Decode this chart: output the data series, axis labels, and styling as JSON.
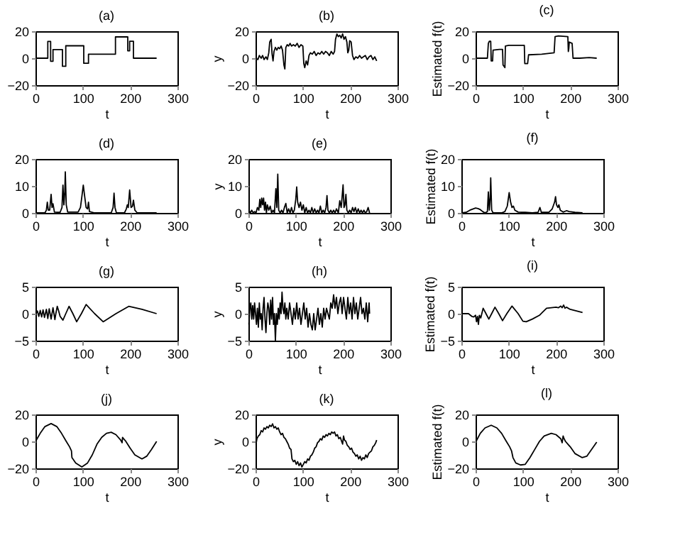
{
  "chart_data": [
    {
      "type": "line",
      "title": "(a)",
      "xlabel": "t",
      "color": "#000000",
      "xlim": [
        0,
        300
      ],
      "xticks": [
        0,
        100,
        200,
        300
      ],
      "ylim": [
        -20,
        20
      ],
      "yticks": [
        -20,
        0,
        20
      ],
      "x": [
        1,
        26,
        26,
        32,
        32,
        37,
        37,
        57,
        57,
        64,
        64,
        102,
        102,
        112,
        112,
        169,
        169,
        195,
        195,
        199,
        199,
        207,
        207,
        256
      ],
      "values": [
        0,
        0,
        12.4,
        12.4,
        -2.3,
        -2.3,
        6.4,
        6.4,
        -6,
        -6,
        9.2,
        9.2,
        -3.8,
        -3.8,
        3,
        3,
        15.8,
        15.8,
        5.5,
        5.5,
        12.6,
        12.6,
        0,
        0
      ]
    },
    {
      "type": "line",
      "title": "(b)",
      "xlabel": "t",
      "ylabel": "y",
      "color": "#000000",
      "xlim": [
        0,
        300
      ],
      "xticks": [
        0,
        100,
        200,
        300
      ],
      "ylim": [
        -20,
        20
      ],
      "yticks": [
        -20,
        0,
        20
      ],
      "x": [
        1,
        5,
        8,
        12,
        15,
        18,
        22,
        25,
        28,
        30,
        33,
        35,
        37,
        39,
        42,
        45,
        48,
        51,
        54,
        57,
        60,
        62,
        64,
        67,
        70,
        73,
        76,
        80,
        84,
        88,
        92,
        96,
        100,
        102,
        104,
        107,
        110,
        113,
        116,
        120,
        124,
        128,
        132,
        136,
        140,
        144,
        148,
        152,
        156,
        160,
        164,
        167,
        169,
        172,
        175,
        178,
        181,
        184,
        187,
        190,
        193,
        195,
        197,
        199,
        202,
        205,
        208,
        212,
        216,
        220,
        224,
        228,
        232,
        236,
        240,
        244,
        248,
        252,
        256
      ],
      "values": [
        0,
        -1,
        2,
        0,
        2,
        -1,
        1,
        -1,
        4,
        12,
        14,
        3,
        -2,
        5,
        8,
        6,
        8,
        7,
        9,
        6,
        -5,
        -8,
        8,
        10,
        9,
        11,
        9,
        10,
        9,
        11,
        8,
        10,
        9,
        -4,
        -7,
        -2,
        -5,
        2,
        4,
        3,
        5,
        2,
        4,
        3,
        5,
        3,
        5,
        4,
        2,
        5,
        3,
        5,
        14,
        18,
        16,
        17,
        15,
        18,
        14,
        16,
        12,
        4,
        6,
        13,
        12,
        2,
        -1,
        1,
        0,
        2,
        0,
        1,
        2,
        -1,
        1,
        2,
        -1,
        1,
        -2
      ]
    },
    {
      "type": "line",
      "title": "(c)",
      "xlabel": "t",
      "ylabel": "Estimated f(t)",
      "color": "#000000",
      "xlim": [
        0,
        300
      ],
      "xticks": [
        0,
        100,
        200,
        300
      ],
      "ylim": [
        -20,
        20
      ],
      "yticks": [
        -20,
        0,
        20
      ],
      "x": [
        1,
        25,
        27,
        29,
        32,
        33,
        36,
        37,
        50,
        57,
        58,
        62,
        63,
        70,
        103,
        104,
        110,
        112,
        140,
        166,
        168,
        175,
        195,
        196,
        197,
        198,
        204,
        206,
        220,
        240,
        256
      ],
      "values": [
        0,
        0,
        11,
        12.5,
        12.5,
        -2,
        -2,
        6,
        6.5,
        6.5,
        -5,
        -7,
        9,
        9.5,
        9.5,
        -4,
        -4,
        2.5,
        3,
        4,
        16,
        16.5,
        16,
        5,
        7,
        12,
        11,
        0,
        0,
        0.5,
        0
      ]
    },
    {
      "type": "line",
      "title": "(d)",
      "xlabel": "t",
      "color": "#000000",
      "xlim": [
        0,
        300
      ],
      "xticks": [
        0,
        100,
        200,
        300
      ],
      "ylim": [
        0,
        20
      ],
      "yticks": [
        0,
        10,
        20
      ],
      "x": [
        1,
        20,
        23,
        25,
        27,
        30,
        33,
        35,
        37,
        40,
        52,
        56,
        58,
        60,
        62,
        63,
        65,
        68,
        90,
        95,
        98,
        101,
        104,
        107,
        110,
        112,
        114,
        125,
        160,
        164,
        166,
        168,
        171,
        188,
        192,
        194,
        196,
        199,
        202,
        205,
        207,
        210,
        215,
        256
      ],
      "values": [
        0,
        0,
        1,
        4,
        1,
        1,
        6.9,
        2,
        3.4,
        0.3,
        0.2,
        2,
        10.3,
        3,
        8,
        15.2,
        3,
        0.3,
        0.3,
        2,
        6,
        10.3,
        6,
        2,
        1.5,
        4,
        0.5,
        0,
        0,
        2,
        7.3,
        2,
        0,
        0,
        1.5,
        3,
        2,
        8.5,
        2,
        2.5,
        4.7,
        1,
        0,
        0
      ]
    },
    {
      "type": "line",
      "title": "(e)",
      "xlabel": "t",
      "ylabel": "y",
      "color": "#000000",
      "xlim": [
        0,
        300
      ],
      "xticks": [
        0,
        100,
        200,
        300
      ],
      "ylim": [
        0,
        20
      ],
      "yticks": [
        0,
        10,
        20
      ],
      "x": [
        1,
        4,
        7,
        10,
        13,
        16,
        19,
        22,
        24,
        26,
        28,
        30,
        32,
        34,
        36,
        38,
        40,
        43,
        46,
        49,
        52,
        55,
        58,
        60,
        62,
        64,
        67,
        70,
        73,
        76,
        79,
        82,
        85,
        88,
        91,
        94,
        97,
        100,
        102,
        104,
        107,
        110,
        113,
        116,
        119,
        122,
        125,
        128,
        131,
        134,
        137,
        140,
        143,
        146,
        149,
        152,
        155,
        158,
        161,
        164,
        166,
        168,
        171,
        174,
        177,
        180,
        183,
        186,
        190,
        193,
        196,
        198,
        200,
        202,
        204,
        206,
        208,
        211,
        214,
        217,
        220,
        223,
        226,
        229,
        232,
        235,
        238,
        241,
        244,
        247,
        250,
        253,
        256
      ],
      "values": [
        1,
        0,
        1,
        0,
        0.5,
        0,
        2,
        1,
        5,
        2,
        5.5,
        3,
        5.5,
        1,
        4,
        0,
        3,
        1,
        2.5,
        0,
        1,
        0,
        9,
        2,
        14.4,
        1,
        0,
        1,
        0,
        2,
        3.5,
        0,
        1.5,
        0,
        2,
        0,
        1,
        5,
        9.6,
        4,
        2,
        4,
        1,
        3,
        0,
        2,
        0,
        1,
        0,
        2,
        0,
        1.5,
        0,
        1,
        0,
        2.5,
        0,
        1,
        0,
        2,
        6.4,
        1,
        0,
        1,
        0,
        1,
        0,
        1.5,
        0,
        4.5,
        2,
        6,
        10.4,
        2,
        3,
        6.9,
        1,
        0,
        1,
        0,
        2,
        0.5,
        2,
        0,
        1.5,
        0,
        1,
        0,
        1,
        0,
        0.5,
        2,
        0
      ]
    },
    {
      "type": "line",
      "title": "(f)",
      "xlabel": "t",
      "ylabel": "Estimated f(t)",
      "color": "#000000",
      "xlim": [
        0,
        300
      ],
      "xticks": [
        0,
        100,
        200,
        300
      ],
      "ylim": [
        0,
        20
      ],
      "yticks": [
        0,
        10,
        20
      ],
      "x": [
        1,
        10,
        18,
        25,
        30,
        35,
        40,
        45,
        50,
        55,
        57,
        59,
        61,
        62,
        64,
        67,
        85,
        92,
        97,
        101,
        104,
        107,
        110,
        113,
        120,
        135,
        150,
        162,
        166,
        169,
        185,
        192,
        197,
        199,
        201,
        204,
        206,
        209,
        215,
        222,
        228,
        240,
        256
      ],
      "values": [
        0,
        0.2,
        1,
        1.5,
        1.8,
        1.6,
        1.2,
        0.5,
        0,
        0.5,
        7.8,
        1,
        6,
        13,
        1,
        0,
        0,
        0.5,
        2.5,
        7.5,
        4,
        2,
        2.5,
        1,
        0.3,
        0.2,
        0,
        0.2,
        2,
        0.2,
        0.2,
        1.5,
        4,
        6,
        3,
        2,
        3,
        1,
        0.3,
        0.8,
        0.5,
        0.2,
        0
      ]
    },
    {
      "type": "line",
      "title": "(g)",
      "xlabel": "t",
      "color": "#000000",
      "xlim": [
        0,
        300
      ],
      "xticks": [
        0,
        100,
        200,
        300
      ],
      "ylim": [
        -5,
        5
      ],
      "yticks": [
        -5,
        0,
        5
      ],
      "x": [
        1,
        4,
        7,
        10,
        13,
        16,
        19,
        23,
        26,
        29,
        33,
        37,
        41,
        43,
        46,
        49,
        52,
        58,
        64,
        71,
        79,
        87,
        97,
        107,
        125,
        143,
        170,
        197,
        225,
        256
      ],
      "values": [
        0,
        0.5,
        -0.5,
        0.6,
        -0.6,
        0.7,
        -0.7,
        0.8,
        -0.9,
        0.9,
        -1,
        1.1,
        -1.1,
        0,
        1.35,
        0.5,
        -0.5,
        -1.2,
        0,
        1.35,
        0,
        -1.5,
        0,
        1.7,
        0,
        -1.5,
        0,
        1.35,
        0.8,
        0
      ]
    },
    {
      "type": "line",
      "title": "(h)",
      "xlabel": "t",
      "ylabel": "y",
      "color": "#000000",
      "xlim": [
        0,
        300
      ],
      "xticks": [
        0,
        100,
        200,
        300
      ],
      "ylim": [
        -5,
        5
      ],
      "yticks": [
        -5,
        0,
        5
      ],
      "x": [
        1,
        3,
        5,
        7,
        9,
        11,
        13,
        15,
        17,
        19,
        21,
        23,
        25,
        27,
        29,
        31,
        33,
        35,
        37,
        39,
        41,
        43,
        45,
        47,
        49,
        51,
        53,
        55,
        57,
        59,
        61,
        63,
        65,
        67,
        69,
        71,
        73,
        75,
        77,
        79,
        81,
        84,
        87,
        90,
        93,
        96,
        99,
        102,
        105,
        108,
        111,
        114,
        117,
        120,
        123,
        126,
        129,
        132,
        135,
        138,
        141,
        144,
        147,
        150,
        153,
        156,
        159,
        162,
        165,
        168,
        171,
        174,
        177,
        180,
        183,
        186,
        189,
        192,
        195,
        198,
        201,
        204,
        207,
        210,
        213,
        216,
        219,
        222,
        225,
        228,
        231,
        234,
        237,
        240,
        243,
        246,
        249,
        252,
        255,
        256
      ],
      "values": [
        -2,
        1,
        2,
        -1,
        1.5,
        -1,
        2,
        0,
        -2,
        1,
        -2.5,
        2,
        -1,
        0,
        -3,
        1,
        3,
        -1,
        -3.5,
        0,
        2,
        1,
        -2,
        2.5,
        -1,
        3,
        -2,
        0,
        -5,
        0,
        -2,
        1,
        -1,
        2,
        0,
        4,
        1,
        0,
        2,
        -1,
        1,
        -1,
        2,
        0,
        -2,
        1,
        -1,
        2,
        -1,
        1,
        -2,
        0,
        2,
        -1,
        1,
        -2.5,
        0,
        -2,
        -3,
        0,
        -3,
        -1,
        1,
        -2,
        0,
        -2.5,
        1,
        -1,
        1,
        0,
        -1,
        2,
        1,
        3.5,
        1,
        3,
        0,
        2,
        3,
        0,
        3,
        1,
        -1,
        3,
        0,
        2,
        -1,
        3,
        0,
        2,
        -1,
        1,
        3,
        0,
        1,
        -1,
        2,
        -1.5,
        2,
        0
      ]
    },
    {
      "type": "line",
      "title": "(i)",
      "xlabel": "t",
      "ylabel": "Estimated f(t)",
      "color": "#000000",
      "xlim": [
        0,
        300
      ],
      "xticks": [
        0,
        100,
        200,
        300
      ],
      "ylim": [
        -5,
        5
      ],
      "yticks": [
        -5,
        0,
        5
      ],
      "x": [
        1,
        15,
        22,
        26,
        30,
        32,
        34,
        36,
        38,
        41,
        46,
        52,
        58,
        64,
        71,
        79,
        87,
        96,
        107,
        120,
        130,
        137,
        150,
        165,
        180,
        190,
        200,
        205,
        210,
        213,
        216,
        219,
        222,
        230,
        256
      ],
      "values": [
        0,
        0,
        -0.5,
        -0.6,
        -0.3,
        -1.5,
        -0.5,
        -2,
        -0.3,
        -0.8,
        1,
        0,
        -1,
        0,
        1.2,
        0,
        -1.3,
        0,
        1.4,
        0,
        -1.4,
        -1.5,
        -1,
        -0.3,
        1,
        1.1,
        1.2,
        1.1,
        1.4,
        1.1,
        1.6,
        1,
        1.2,
        0.8,
        0.2
      ]
    },
    {
      "type": "line",
      "title": "(j)",
      "xlabel": "t",
      "color": "#000000",
      "xlim": [
        0,
        300
      ],
      "xticks": [
        0,
        100,
        200,
        300
      ],
      "ylim": [
        -20,
        20
      ],
      "yticks": [
        -20,
        0,
        20
      ],
      "x": [
        1,
        10,
        20,
        33,
        45,
        55,
        65,
        72,
        76,
        77,
        85,
        98,
        110,
        120,
        130,
        140,
        150,
        160,
        170,
        180,
        183,
        184,
        186,
        190,
        200,
        210,
        225,
        235,
        245,
        256
      ],
      "values": [
        0.5,
        6,
        11,
        13.2,
        11,
        6,
        0,
        -4,
        -7,
        -12,
        -16,
        -19,
        -16,
        -10,
        -2,
        3,
        6,
        6.8,
        5,
        1,
        -1,
        3,
        2,
        0.5,
        -5,
        -10,
        -13,
        -11,
        -6,
        0
      ]
    },
    {
      "type": "line",
      "title": "(k)",
      "xlabel": "t",
      "ylabel": "y",
      "color": "#000000",
      "xlim": [
        0,
        300
      ],
      "xticks": [
        0,
        100,
        200,
        300
      ],
      "ylim": [
        -20,
        20
      ],
      "yticks": [
        -20,
        0,
        20
      ],
      "x": [
        1,
        3,
        6,
        9,
        12,
        15,
        18,
        21,
        24,
        27,
        30,
        33,
        36,
        39,
        42,
        45,
        48,
        51,
        54,
        57,
        60,
        63,
        66,
        69,
        72,
        75,
        77,
        80,
        83,
        86,
        89,
        92,
        95,
        98,
        101,
        104,
        107,
        110,
        113,
        116,
        119,
        122,
        125,
        128,
        131,
        134,
        137,
        140,
        143,
        146,
        149,
        152,
        155,
        158,
        161,
        164,
        167,
        170,
        173,
        176,
        179,
        182,
        184,
        186,
        188,
        191,
        194,
        197,
        200,
        203,
        206,
        209,
        212,
        215,
        218,
        221,
        224,
        227,
        230,
        233,
        236,
        239,
        242,
        245,
        248,
        251,
        254,
        256
      ],
      "values": [
        -2,
        2,
        4,
        5,
        8,
        7,
        10,
        9,
        11,
        10,
        12,
        11,
        13,
        10,
        11,
        9,
        10,
        7,
        5,
        6,
        3,
        2,
        0,
        -2,
        -5,
        -6,
        -13,
        -15,
        -14,
        -17,
        -15,
        -18,
        -16,
        -19,
        -17,
        -15,
        -16,
        -13,
        -14,
        -11,
        -10,
        -8,
        -5,
        -4,
        -1,
        0,
        2,
        1,
        4,
        3,
        5,
        4,
        6,
        5,
        7,
        6,
        7,
        4,
        5,
        2,
        3,
        0,
        -2,
        4,
        1,
        0,
        -3,
        -4,
        -6,
        -5,
        -8,
        -9,
        -11,
        -10,
        -13,
        -11,
        -14,
        -12,
        -13,
        -10,
        -12,
        -9,
        -8,
        -7,
        -4,
        -3,
        -1,
        1
      ]
    },
    {
      "type": "line",
      "title": "(l)",
      "xlabel": "t",
      "ylabel": "Estimated f(t)",
      "color": "#000000",
      "xlim": [
        0,
        300
      ],
      "xticks": [
        0,
        100,
        200,
        300
      ],
      "ylim": [
        -20,
        20
      ],
      "yticks": [
        -20,
        0,
        20
      ],
      "x": [
        1,
        10,
        20,
        33,
        45,
        55,
        65,
        72,
        76,
        79,
        85,
        95,
        105,
        115,
        125,
        135,
        145,
        160,
        170,
        180,
        183,
        185,
        187,
        190,
        195,
        200,
        210,
        225,
        235,
        245,
        256
      ],
      "values": [
        0,
        6,
        10,
        12,
        10,
        6,
        0,
        -4,
        -7,
        -12,
        -16,
        -17.5,
        -17,
        -12,
        -6,
        0,
        4,
        6,
        5,
        2,
        -1,
        4,
        2,
        0,
        -2,
        -4,
        -9,
        -12,
        -11,
        -6,
        -0.5
      ]
    }
  ]
}
